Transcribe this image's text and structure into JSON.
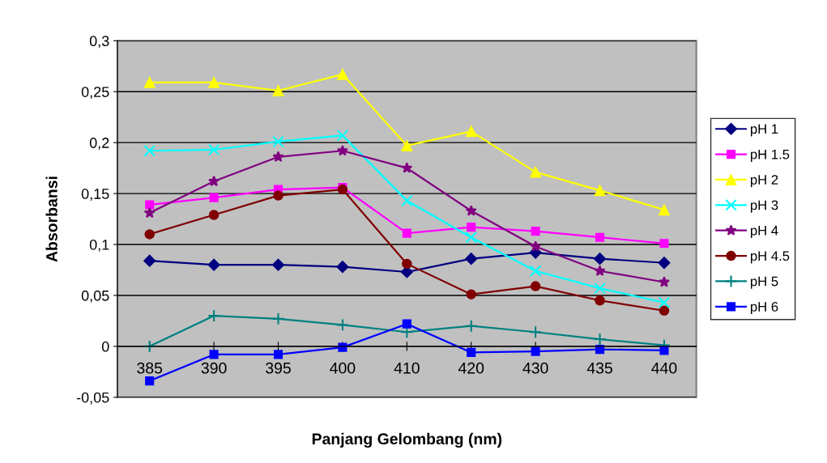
{
  "chart_data": {
    "type": "line",
    "xlabel": "Panjang Gelombang (nm)",
    "ylabel": "Absorbansi",
    "categories": [
      "385",
      "390",
      "395",
      "400",
      "410",
      "420",
      "430",
      "435",
      "440"
    ],
    "ylim": [
      -0.05,
      0.3
    ],
    "yticks": [
      {
        "value": -0.05,
        "label": "-0,05"
      },
      0,
      {
        "value": 0.05,
        "label": "0,05"
      },
      {
        "value": 0.1,
        "label": "0,1"
      },
      {
        "value": 0.15,
        "label": "0,15"
      },
      {
        "value": 0.2,
        "label": "0,2"
      },
      {
        "value": 0.25,
        "label": "0,25"
      },
      {
        "value": 0.3,
        "label": "0,3"
      }
    ],
    "grid": "y",
    "legend": "right",
    "series": [
      {
        "name": "pH 1",
        "color": "#000080",
        "marker": "diamond",
        "values": [
          0.084,
          0.08,
          0.08,
          0.078,
          0.073,
          0.086,
          0.092,
          0.086,
          0.082
        ]
      },
      {
        "name": "pH 1.5",
        "color": "#ff00ff",
        "marker": "square",
        "values": [
          0.139,
          0.146,
          0.154,
          0.156,
          0.111,
          0.117,
          0.113,
          0.107,
          0.101
        ]
      },
      {
        "name": "pH 2",
        "color": "#ffff00",
        "marker": "triangle",
        "values": [
          0.259,
          0.259,
          0.251,
          0.267,
          0.197,
          0.211,
          0.171,
          0.153,
          0.134
        ]
      },
      {
        "name": "pH 3",
        "color": "#00ffff",
        "marker": "cross",
        "values": [
          0.192,
          0.193,
          0.201,
          0.207,
          0.143,
          0.107,
          0.074,
          0.057,
          0.043
        ]
      },
      {
        "name": "pH 4",
        "color": "#800080",
        "marker": "star",
        "values": [
          0.131,
          0.162,
          0.186,
          0.192,
          0.175,
          0.133,
          0.098,
          0.074,
          0.063
        ]
      },
      {
        "name": "pH 4.5",
        "color": "#800000",
        "marker": "circle",
        "values": [
          0.11,
          0.129,
          0.148,
          0.154,
          0.081,
          0.051,
          0.059,
          0.045,
          0.035
        ]
      },
      {
        "name": "pH 5",
        "color": "#008080",
        "marker": "plus",
        "values": [
          0.0,
          0.03,
          0.027,
          0.021,
          0.014,
          0.02,
          0.014,
          0.007,
          0.001
        ]
      },
      {
        "name": "pH 6",
        "color": "#0000ff",
        "marker": "square",
        "values": [
          -0.034,
          -0.008,
          -0.008,
          -0.001,
          0.022,
          -0.006,
          -0.005,
          -0.003,
          -0.004
        ]
      }
    ]
  }
}
